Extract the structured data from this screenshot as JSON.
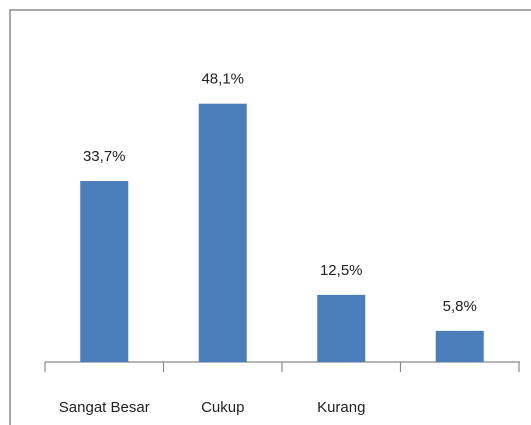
{
  "chart_data": {
    "type": "bar",
    "categories": [
      "Sangat Besar",
      "Cukup",
      "Kurang",
      null
    ],
    "values": [
      33.7,
      48.1,
      12.5,
      5.8
    ],
    "value_labels": [
      "33,7%",
      "48,1%",
      "12,5%",
      "5,8%"
    ],
    "color": "#4a7ebb"
  }
}
